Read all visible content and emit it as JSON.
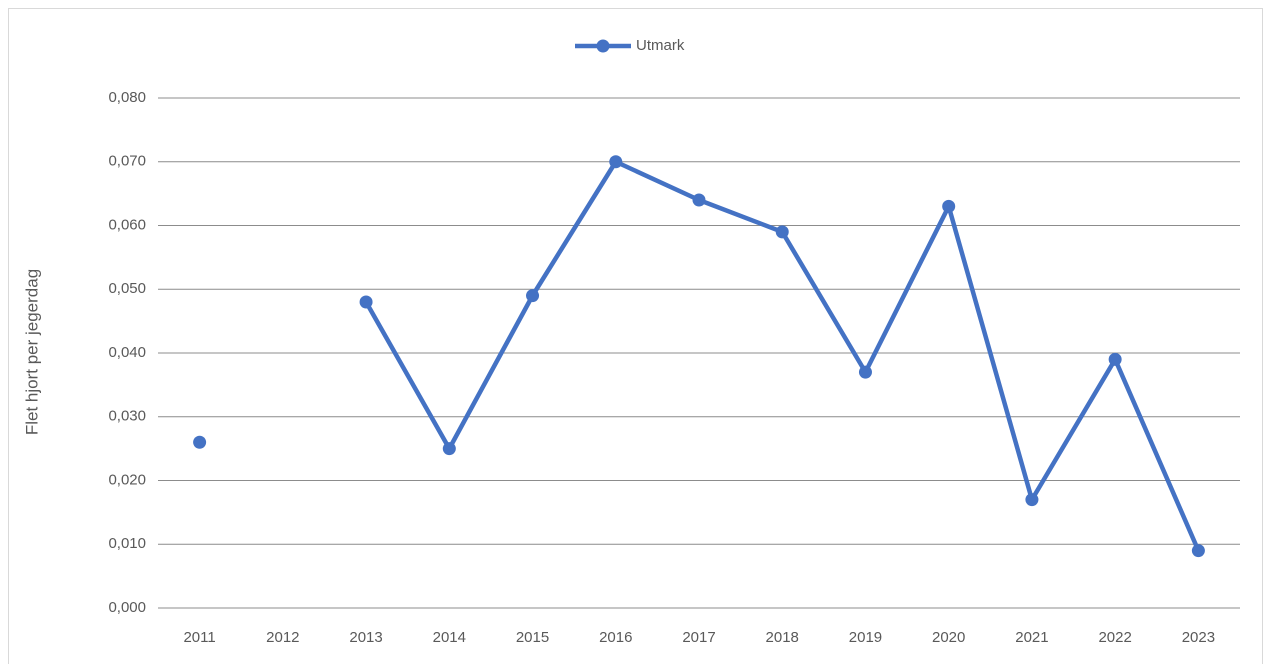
{
  "chart_data": {
    "type": "line",
    "y_label": "Flet hjort per jegerdag",
    "categories": [
      "2011",
      "2012",
      "2013",
      "2014",
      "2015",
      "2016",
      "2017",
      "2018",
      "2019",
      "2020",
      "2021",
      "2022",
      "2023"
    ],
    "series": [
      {
        "name": "Utmark",
        "color": "#4472c4",
        "values": [
          0.026,
          null,
          0.048,
          0.025,
          0.049,
          0.07,
          0.064,
          0.059,
          0.037,
          0.063,
          0.017,
          0.039,
          0.009
        ]
      }
    ],
    "ylim": [
      0,
      0.08
    ],
    "yticks": [
      {
        "value": 0,
        "label": "0,000"
      },
      {
        "value": 0.01,
        "label": "0,010"
      },
      {
        "value": 0.02,
        "label": "0,020"
      },
      {
        "value": 0.03,
        "label": "0,030"
      },
      {
        "value": 0.04,
        "label": "0,040"
      },
      {
        "value": 0.05,
        "label": "0,050"
      },
      {
        "value": 0.06,
        "label": "0,060"
      },
      {
        "value": 0.07,
        "label": "0,070"
      },
      {
        "value": 0.08,
        "label": "0,080"
      }
    ],
    "grid": true,
    "legend": "top"
  }
}
